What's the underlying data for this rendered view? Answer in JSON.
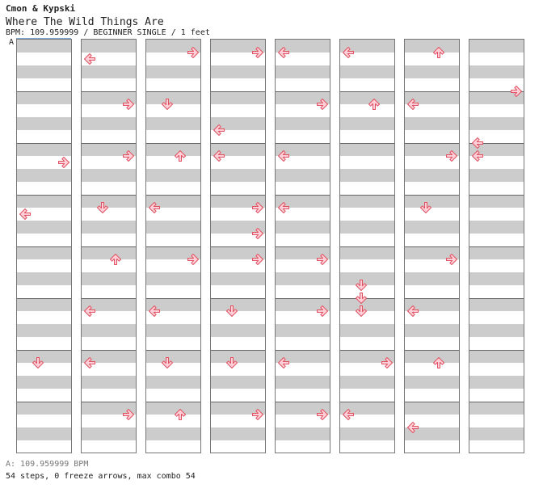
{
  "header": {
    "artist": "Cmon & Kypski",
    "title": "Where The Wild Things Are",
    "bpm_line": "BPM: 109.959999 / BEGINNER SINGLE / 1 feet",
    "bpm_marker": "A"
  },
  "footer": {
    "bpm_legend": "A: 109.959999 BPM",
    "stats": "54 steps, 0 freeze arrows, max combo 54"
  },
  "colors": {
    "arrow_fill": "#ffd0d8",
    "arrow_stroke": "#e05060",
    "stripe_gray": "#cccccc",
    "border": "#777777"
  },
  "chart": {
    "columns": 8,
    "measures_per_column": 8,
    "rows_per_measure": 8,
    "notes": [
      {
        "col": 0,
        "m": 2,
        "r": 3,
        "lane": 3
      },
      {
        "col": 0,
        "m": 3,
        "r": 3,
        "lane": 0
      },
      {
        "col": 0,
        "m": 6,
        "r": 2,
        "lane": 1
      },
      {
        "col": 1,
        "m": 0,
        "r": 3,
        "lane": 0
      },
      {
        "col": 1,
        "m": 1,
        "r": 2,
        "lane": 3
      },
      {
        "col": 1,
        "m": 2,
        "r": 2,
        "lane": 3
      },
      {
        "col": 1,
        "m": 3,
        "r": 2,
        "lane": 1
      },
      {
        "col": 1,
        "m": 4,
        "r": 2,
        "lane": 2
      },
      {
        "col": 1,
        "m": 5,
        "r": 2,
        "lane": 0
      },
      {
        "col": 1,
        "m": 6,
        "r": 2,
        "lane": 0
      },
      {
        "col": 1,
        "m": 7,
        "r": 2,
        "lane": 3
      },
      {
        "col": 2,
        "m": 0,
        "r": 2,
        "lane": 3
      },
      {
        "col": 2,
        "m": 1,
        "r": 2,
        "lane": 1
      },
      {
        "col": 2,
        "m": 2,
        "r": 2,
        "lane": 2
      },
      {
        "col": 2,
        "m": 3,
        "r": 2,
        "lane": 0
      },
      {
        "col": 2,
        "m": 4,
        "r": 2,
        "lane": 3
      },
      {
        "col": 2,
        "m": 5,
        "r": 2,
        "lane": 0
      },
      {
        "col": 2,
        "m": 6,
        "r": 2,
        "lane": 1
      },
      {
        "col": 2,
        "m": 7,
        "r": 2,
        "lane": 2
      },
      {
        "col": 3,
        "m": 0,
        "r": 2,
        "lane": 3
      },
      {
        "col": 3,
        "m": 1,
        "r": 6,
        "lane": 0
      },
      {
        "col": 3,
        "m": 2,
        "r": 2,
        "lane": 0
      },
      {
        "col": 3,
        "m": 3,
        "r": 2,
        "lane": 3
      },
      {
        "col": 3,
        "m": 3,
        "r": 6,
        "lane": 3
      },
      {
        "col": 3,
        "m": 4,
        "r": 2,
        "lane": 3
      },
      {
        "col": 3,
        "m": 5,
        "r": 2,
        "lane": 1
      },
      {
        "col": 3,
        "m": 6,
        "r": 2,
        "lane": 1
      },
      {
        "col": 3,
        "m": 7,
        "r": 2,
        "lane": 3
      },
      {
        "col": 4,
        "m": 0,
        "r": 2,
        "lane": 0
      },
      {
        "col": 4,
        "m": 1,
        "r": 2,
        "lane": 3
      },
      {
        "col": 4,
        "m": 2,
        "r": 2,
        "lane": 0
      },
      {
        "col": 4,
        "m": 3,
        "r": 2,
        "lane": 0
      },
      {
        "col": 4,
        "m": 4,
        "r": 2,
        "lane": 3
      },
      {
        "col": 4,
        "m": 5,
        "r": 2,
        "lane": 3
      },
      {
        "col": 4,
        "m": 6,
        "r": 2,
        "lane": 0
      },
      {
        "col": 4,
        "m": 7,
        "r": 2,
        "lane": 3
      },
      {
        "col": 5,
        "m": 0,
        "r": 2,
        "lane": 0
      },
      {
        "col": 5,
        "m": 1,
        "r": 2,
        "lane": 2
      },
      {
        "col": 5,
        "m": 4,
        "r": 6,
        "lane": 1
      },
      {
        "col": 5,
        "m": 5,
        "r": 0,
        "lane": 1
      },
      {
        "col": 5,
        "m": 5,
        "r": 2,
        "lane": 1
      },
      {
        "col": 5,
        "m": 6,
        "r": 2,
        "lane": 3
      },
      {
        "col": 5,
        "m": 7,
        "r": 2,
        "lane": 0
      },
      {
        "col": 6,
        "m": 0,
        "r": 2,
        "lane": 2
      },
      {
        "col": 6,
        "m": 1,
        "r": 2,
        "lane": 0
      },
      {
        "col": 6,
        "m": 2,
        "r": 2,
        "lane": 3
      },
      {
        "col": 6,
        "m": 3,
        "r": 2,
        "lane": 1
      },
      {
        "col": 6,
        "m": 4,
        "r": 2,
        "lane": 3
      },
      {
        "col": 6,
        "m": 5,
        "r": 2,
        "lane": 0
      },
      {
        "col": 6,
        "m": 6,
        "r": 2,
        "lane": 2
      },
      {
        "col": 6,
        "m": 7,
        "r": 4,
        "lane": 0
      },
      {
        "col": 7,
        "m": 1,
        "r": 0,
        "lane": 3
      },
      {
        "col": 7,
        "m": 2,
        "r": 0,
        "lane": 0
      },
      {
        "col": 7,
        "m": 2,
        "r": 2,
        "lane": 0
      }
    ]
  }
}
